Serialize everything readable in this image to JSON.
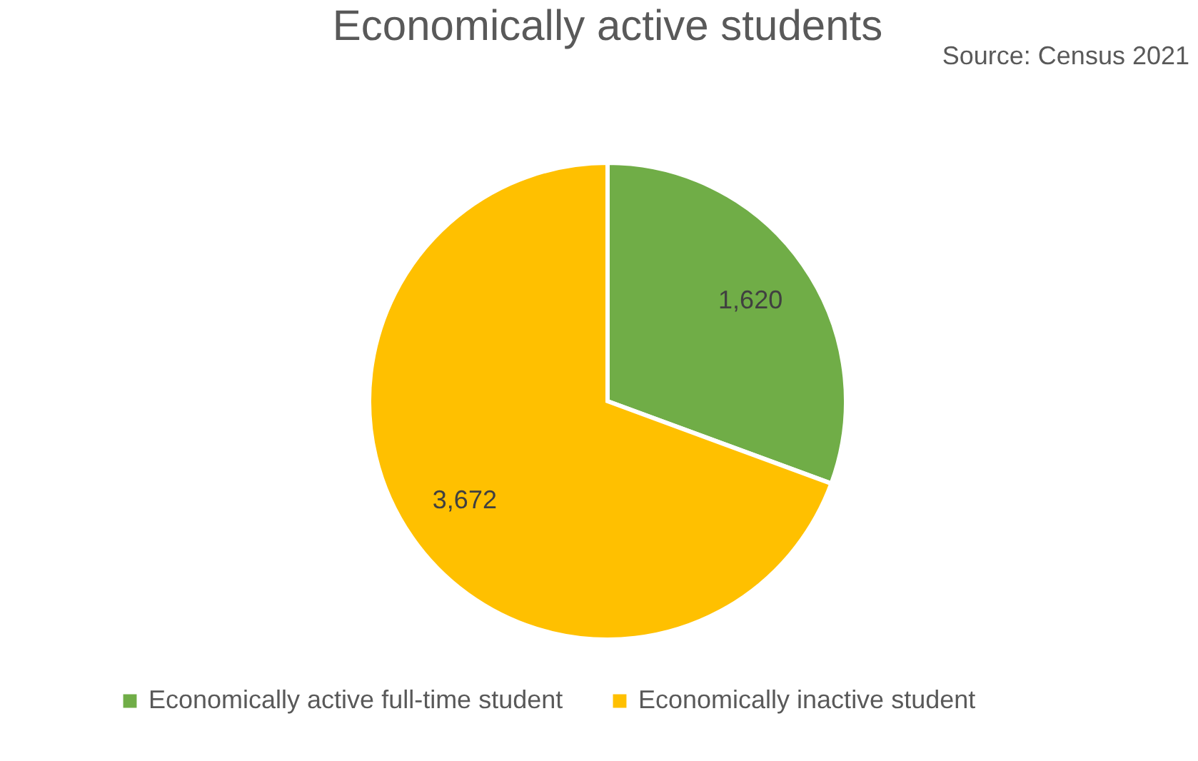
{
  "chart_data": {
    "type": "pie",
    "title": "Economically active students",
    "categories": [
      "Economically active full-time student",
      "Economically inactive student"
    ],
    "values": [
      1620,
      3672
    ],
    "colors": [
      "#70ad47",
      "#ffc000"
    ],
    "value_labels": [
      "1,620",
      "3,672"
    ],
    "legend": "bottom",
    "annotations": [
      "Source: Census 2021"
    ]
  }
}
